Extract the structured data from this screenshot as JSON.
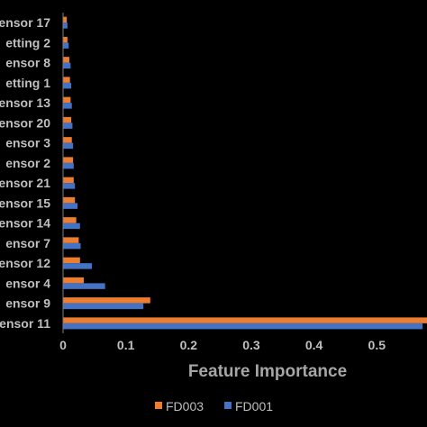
{
  "chart_data": {
    "type": "bar",
    "orientation": "horizontal",
    "title": "",
    "xlabel": "Feature Importance",
    "ylabel": "",
    "xlim": [
      0,
      0.58
    ],
    "xticks": [
      "0",
      "0.1",
      "0.2",
      "0.3",
      "0.4",
      "0.5"
    ],
    "xtick_values": [
      0,
      0.1,
      0.2,
      0.3,
      0.4,
      0.5
    ],
    "grid": false,
    "legend_position": "bottom",
    "categories": [
      "ensor 11",
      "ensor 9",
      "ensor 4",
      "ensor 12",
      "ensor 7",
      "ensor 14",
      "ensor 15",
      "ensor 21",
      "ensor 2",
      "ensor 3",
      "ensor 20",
      "ensor 13",
      "etting 1",
      "ensor 8",
      "etting 2",
      "ensor 17"
    ],
    "series": [
      {
        "name": "FD003",
        "color": "#ed7d31",
        "values": [
          0.58,
          0.139,
          0.033,
          0.027,
          0.025,
          0.021,
          0.019,
          0.017,
          0.016,
          0.014,
          0.013,
          0.012,
          0.011,
          0.01,
          0.007,
          0.006
        ]
      },
      {
        "name": "FD001",
        "color": "#4472c4",
        "values": [
          0.573,
          0.128,
          0.067,
          0.046,
          0.028,
          0.027,
          0.023,
          0.019,
          0.017,
          0.016,
          0.015,
          0.014,
          0.013,
          0.012,
          0.009,
          0.007
        ]
      }
    ]
  }
}
